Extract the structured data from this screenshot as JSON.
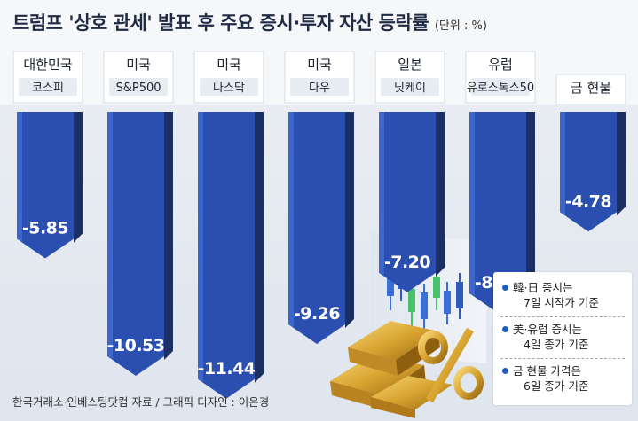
{
  "title": "트럼프 '상호 관세' 발표 후 주요 증시·투자 자산 등락률",
  "unit": "(단위 : %)",
  "chart_data": {
    "type": "bar",
    "categories": [
      {
        "region": "대한민국",
        "index": "코스피"
      },
      {
        "region": "미국",
        "index": "S&P500"
      },
      {
        "region": "미국",
        "index": "나스닥"
      },
      {
        "region": "미국",
        "index": "다우"
      },
      {
        "region": "일본",
        "index": "닛케이"
      },
      {
        "region": "유럽",
        "index": "유로스톡스50"
      },
      {
        "region": "금 현물",
        "index": ""
      }
    ],
    "values": [
      -5.85,
      -10.53,
      -11.44,
      -9.26,
      -7.2,
      -8.02,
      -4.78
    ],
    "value_labels": [
      "-5.85",
      "-10.53",
      "-11.44",
      "-9.26",
      "-7.20",
      "-8.02",
      "-4.78"
    ],
    "ylim": [
      -12,
      0
    ],
    "bar_color": "#2a4fb0",
    "label_box_color": "#e7ecf3"
  },
  "notes": [
    {
      "line1": "韓·日 증시는",
      "line2": "7일 시작가 기준"
    },
    {
      "line1": "美·유럽 증시는",
      "line2": "4일 종가 기준"
    },
    {
      "line1": "금 현물 가격은",
      "line2": "6일 종가 기준"
    }
  ],
  "source": "한국거래소·인베스팅닷컴 자료 / 그래픽 디자인 : 이은경",
  "decor": {
    "illustration": "gold-bars-percent-icon"
  }
}
